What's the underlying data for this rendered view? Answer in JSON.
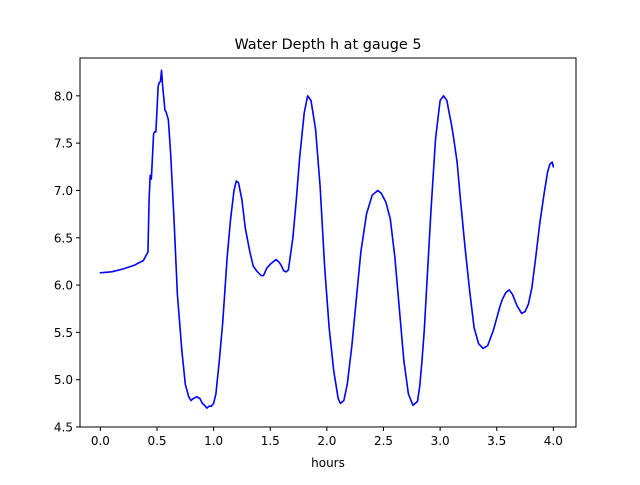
{
  "chart_data": {
    "type": "line",
    "title": "Water Depth h at gauge 5",
    "xlabel": "hours",
    "ylabel": "",
    "xlim": [
      -0.18,
      4.2
    ],
    "ylim": [
      4.5,
      8.4
    ],
    "xticks": [
      0.0,
      0.5,
      1.0,
      1.5,
      2.0,
      2.5,
      3.0,
      3.5,
      4.0
    ],
    "xtick_labels": [
      "0.0",
      "0.5",
      "1.0",
      "1.5",
      "2.0",
      "2.5",
      "3.0",
      "3.5",
      "4.0"
    ],
    "yticks": [
      4.5,
      5.0,
      5.5,
      6.0,
      6.5,
      7.0,
      7.5,
      8.0
    ],
    "ytick_labels": [
      "4.5",
      "5.0",
      "5.5",
      "6.0",
      "6.5",
      "7.0",
      "7.5",
      "8.0"
    ],
    "grid": false,
    "series": [
      {
        "color": "#0000ff",
        "x": [
          0.0,
          0.1,
          0.2,
          0.3,
          0.38,
          0.42,
          0.43,
          0.44,
          0.45,
          0.47,
          0.48,
          0.49,
          0.5,
          0.51,
          0.52,
          0.53,
          0.54,
          0.55,
          0.57,
          0.58,
          0.6,
          0.62,
          0.65,
          0.68,
          0.72,
          0.75,
          0.78,
          0.8,
          0.82,
          0.85,
          0.88,
          0.9,
          0.92,
          0.94,
          0.96,
          0.98,
          1.0,
          1.02,
          1.05,
          1.08,
          1.12,
          1.15,
          1.18,
          1.2,
          1.22,
          1.25,
          1.28,
          1.32,
          1.35,
          1.38,
          1.42,
          1.44,
          1.47,
          1.5,
          1.55,
          1.58,
          1.6,
          1.62,
          1.64,
          1.66,
          1.7,
          1.73,
          1.76,
          1.8,
          1.83,
          1.86,
          1.9,
          1.94,
          1.98,
          2.02,
          2.06,
          2.1,
          2.12,
          2.15,
          2.18,
          2.22,
          2.26,
          2.3,
          2.35,
          2.4,
          2.45,
          2.48,
          2.52,
          2.56,
          2.6,
          2.64,
          2.68,
          2.72,
          2.76,
          2.8,
          2.82,
          2.84,
          2.86,
          2.88,
          2.92,
          2.96,
          3.0,
          3.03,
          3.06,
          3.08,
          3.1,
          3.12,
          3.15,
          3.18,
          3.22,
          3.26,
          3.3,
          3.34,
          3.38,
          3.42,
          3.47,
          3.5,
          3.53,
          3.55,
          3.58,
          3.61,
          3.64,
          3.68,
          3.72,
          3.75,
          3.78,
          3.81,
          3.84,
          3.88,
          3.92,
          3.95,
          3.97,
          3.99,
          4.0
        ],
        "y": [
          6.13,
          6.14,
          6.17,
          6.21,
          6.26,
          6.35,
          6.9,
          7.16,
          7.12,
          7.6,
          7.62,
          7.62,
          7.85,
          8.1,
          8.14,
          8.15,
          8.27,
          8.1,
          7.85,
          7.83,
          7.75,
          7.4,
          6.7,
          5.9,
          5.3,
          4.95,
          4.82,
          4.78,
          4.8,
          4.82,
          4.8,
          4.75,
          4.73,
          4.7,
          4.72,
          4.72,
          4.75,
          4.85,
          5.2,
          5.6,
          6.3,
          6.7,
          7.0,
          7.1,
          7.08,
          6.9,
          6.6,
          6.35,
          6.2,
          6.15,
          6.1,
          6.1,
          6.18,
          6.22,
          6.27,
          6.24,
          6.2,
          6.15,
          6.14,
          6.16,
          6.5,
          6.9,
          7.35,
          7.82,
          8.0,
          7.95,
          7.65,
          7.05,
          6.2,
          5.55,
          5.1,
          4.8,
          4.75,
          4.78,
          4.95,
          5.35,
          5.85,
          6.35,
          6.75,
          6.95,
          7.0,
          6.97,
          6.88,
          6.7,
          6.3,
          5.75,
          5.2,
          4.85,
          4.73,
          4.77,
          4.93,
          5.2,
          5.52,
          5.95,
          6.8,
          7.55,
          7.95,
          8.0,
          7.95,
          7.82,
          7.7,
          7.55,
          7.3,
          6.9,
          6.4,
          5.95,
          5.55,
          5.38,
          5.33,
          5.36,
          5.52,
          5.65,
          5.78,
          5.85,
          5.92,
          5.95,
          5.9,
          5.78,
          5.7,
          5.72,
          5.8,
          5.97,
          6.25,
          6.65,
          6.98,
          7.2,
          7.28,
          7.3,
          7.25
        ]
      }
    ]
  }
}
